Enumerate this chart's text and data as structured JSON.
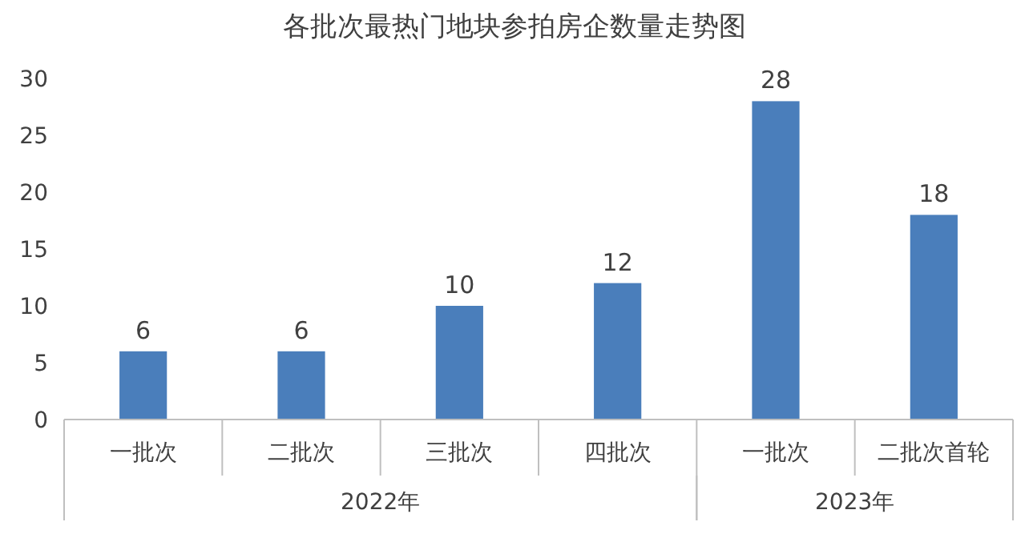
{
  "chart_data": {
    "type": "bar",
    "title": "各批次最热门地块参拍房企数量走势图",
    "categories": [
      "一批次",
      "二批次",
      "三批次",
      "四批次",
      "一批次",
      "二批次首轮"
    ],
    "values": [
      6,
      6,
      10,
      12,
      28,
      18
    ],
    "color": "#4a7ebb",
    "ylim": [
      0,
      30
    ],
    "yticks": [
      0,
      5,
      10,
      15,
      20,
      25,
      30
    ],
    "grid": false,
    "data_labels": true,
    "annotations": [
      "2022年",
      "2023年"
    ]
  }
}
